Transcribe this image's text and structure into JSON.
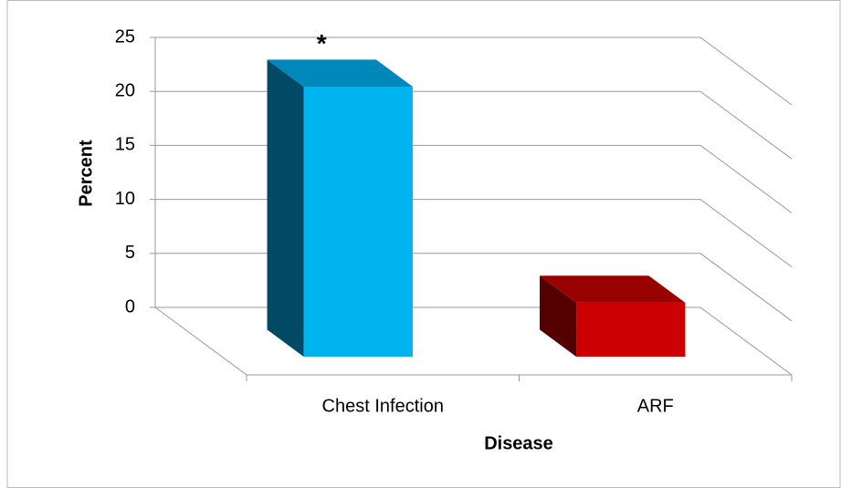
{
  "chart_data": {
    "type": "bar3d",
    "categories": [
      "Chest Infection",
      "ARF"
    ],
    "values": [
      25,
      5
    ],
    "colors": [
      "#00b4f0",
      "#cc0000"
    ],
    "side_colors": [
      "#004a66",
      "#550000"
    ],
    "top_colors": [
      "#0088bb",
      "#990000"
    ],
    "ylim": [
      0,
      25
    ],
    "yticks": [
      0,
      5,
      10,
      15,
      20,
      25
    ],
    "grid": true,
    "xlabel": "Disease",
    "ylabel": "Percent",
    "annotation": "*"
  }
}
